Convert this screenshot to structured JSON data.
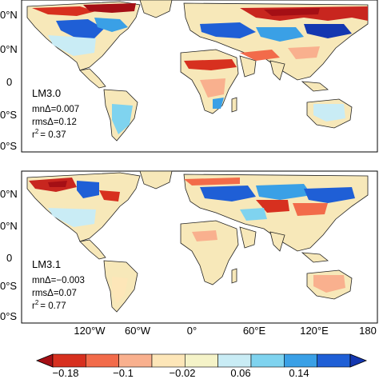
{
  "panels": [
    {
      "model": "LM3.0",
      "mean_delta": "mnΔ=0.007",
      "rms_delta": "rmsΔ=0.12",
      "r2_prefix": "r",
      "r2_exp": "2",
      "r2_value": "= 0.37"
    },
    {
      "model": "LM3.1",
      "mean_delta": "mnΔ=−0.003",
      "rms_delta": "rmsΔ=0.07",
      "r2_prefix": "r",
      "r2_exp": "2",
      "r2_value": "= 0.77"
    }
  ],
  "lat_labels": [
    "0°N",
    "0°N",
    "0",
    "0°S",
    "0°S"
  ],
  "lon_labels": [
    "120°W",
    "60°W",
    "0°",
    "60°E",
    "120°E",
    "180"
  ],
  "colorbar": {
    "ticks": [
      "−0.18",
      "−0.1",
      "−0.02",
      "0.06",
      "0.14"
    ],
    "colors": [
      "#a50f15",
      "#d7301f",
      "#f26b4a",
      "#f9b08e",
      "#fde6b8",
      "#f5f3c8",
      "#c9ecf5",
      "#7fd3ef",
      "#3aa0e6",
      "#1f5fd6",
      "#1437b0"
    ]
  },
  "colors": {
    "ocean": "#ffffff",
    "coast": "#1a1a1a",
    "land_neutral": "#f7e8b9"
  }
}
